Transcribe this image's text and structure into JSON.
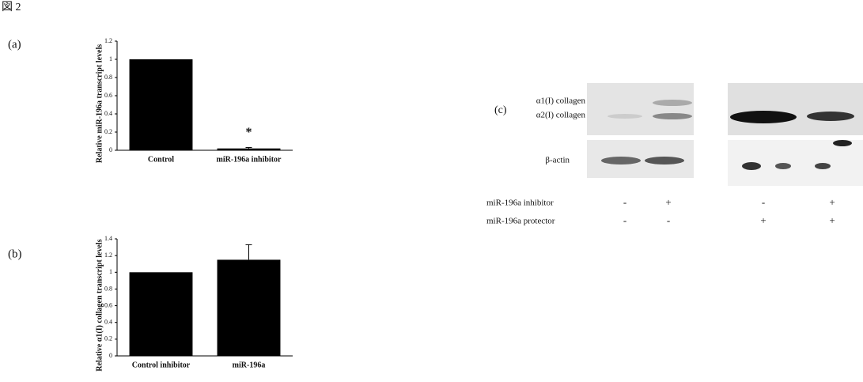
{
  "figure_label": "図 2",
  "panel_labels": [
    "(a)",
    "(b)",
    "(c)"
  ],
  "chart_data": [
    {
      "type": "bar",
      "y_label": "Relative miR-196a transcript levels",
      "categories": [
        "Control",
        "miR-196a inhibitor"
      ],
      "values": [
        1,
        0.02
      ],
      "errors": [
        0,
        0.01
      ],
      "color": "#000000",
      "ylim": [
        0,
        1.2
      ],
      "yticks": [
        0,
        0.2,
        0.4,
        0.6,
        0.8,
        1,
        1.2
      ],
      "annotation": "*"
    },
    {
      "type": "bar",
      "y_label": "Relative α1(I) collagen transcript levels",
      "categories": [
        "Control inhibitor",
        "miR-196a"
      ],
      "values": [
        1,
        1.15
      ],
      "errors": [
        0,
        0.18
      ],
      "color": "#000000",
      "ylim": [
        0,
        1.4
      ],
      "yticks": [
        0,
        0.2,
        0.4,
        0.6,
        0.8,
        1,
        1.2,
        1.4
      ]
    }
  ],
  "blot": {
    "band_labels": [
      "α1(I) collagen",
      "α2(I) collagen",
      "β-actin"
    ],
    "rows": [
      {
        "label": "miR-196a inhibitor",
        "signs": [
          "-",
          "+",
          "-",
          "+"
        ]
      },
      {
        "label": "miR-196a protector",
        "signs": [
          "-",
          "-",
          "+",
          "+"
        ]
      }
    ]
  }
}
